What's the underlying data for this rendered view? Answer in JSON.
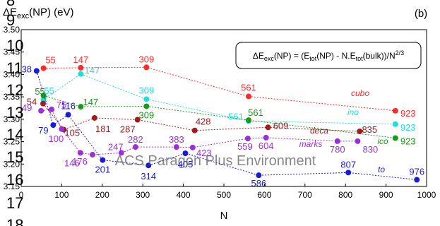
{
  "panel_label": "(b)",
  "watermark": "ACS Paragon Plus Environment",
  "line_numbers": [
    "8",
    "9",
    "10",
    "11",
    "12",
    "13",
    "14",
    "15",
    "16",
    "17",
    "18"
  ],
  "formula": {
    "main": "ΔE",
    "sub": "exc",
    "mid": "(NP) = (E",
    "sub2": "tot",
    "mid2": "(NP) - N.E",
    "sub3": "tot",
    "mid3": "(bulk))/N",
    "sup": "2/3"
  },
  "chart_data": {
    "type": "scatter",
    "xlabel": "N",
    "ylabel": {
      "main": "ΔE",
      "sub": "exc",
      "rest": "(NP) (eV)"
    },
    "xlim": [
      0,
      1000
    ],
    "ylim": [
      3.15,
      3.5
    ],
    "xticks": [
      "0",
      "100",
      "200",
      "300",
      "400",
      "500",
      "600",
      "700",
      "800",
      "900",
      "1000"
    ],
    "yticks": [
      "3.15",
      "3.20",
      "3.25",
      "3.30",
      "3.35",
      "3.40",
      "3.45",
      "3.50"
    ],
    "grid": false,
    "series": [
      {
        "name": "cubo",
        "color": "#ff2a2a",
        "points": [
          {
            "x": 55,
            "y": 3.414,
            "label": "55"
          },
          {
            "x": 147,
            "y": 3.415,
            "label": "147"
          },
          {
            "x": 309,
            "y": 3.416,
            "label": "309"
          },
          {
            "x": 561,
            "y": 3.351,
            "label": "561"
          },
          {
            "x": 923,
            "y": 3.319,
            "label": "923"
          }
        ]
      },
      {
        "name": "ino",
        "color": "#22dddd",
        "points": [
          {
            "x": 55,
            "y": 3.344,
            "label": "55"
          },
          {
            "x": 147,
            "y": 3.401,
            "label": "147"
          },
          {
            "x": 309,
            "y": 3.345,
            "label": "309"
          },
          {
            "x": 561,
            "y": 3.296,
            "label": "561"
          },
          {
            "x": 923,
            "y": 3.289,
            "label": "923"
          }
        ]
      },
      {
        "name": "ico",
        "color": "#1a991a",
        "points": [
          {
            "x": 55,
            "y": 3.353,
            "label": "55"
          },
          {
            "x": 147,
            "y": 3.328,
            "label": "147"
          },
          {
            "x": 309,
            "y": 3.329,
            "label": "309"
          },
          {
            "x": 561,
            "y": 3.298,
            "label": "561"
          },
          {
            "x": 923,
            "y": 3.258,
            "label": "923"
          }
        ]
      },
      {
        "name": "deca",
        "color": "#a01c1c",
        "points": [
          {
            "x": 54,
            "y": 3.335,
            "label": "54"
          },
          {
            "x": 105,
            "y": 3.277,
            "label": "105"
          },
          {
            "x": 181,
            "y": 3.303,
            "label": "181"
          },
          {
            "x": 287,
            "y": 3.299,
            "label": "287"
          },
          {
            "x": 428,
            "y": 3.275,
            "label": "428"
          },
          {
            "x": 609,
            "y": 3.282,
            "label": "609"
          },
          {
            "x": 835,
            "y": 3.273,
            "label": "835"
          }
        ]
      },
      {
        "name": "marks",
        "color": "#9b30d9",
        "points": [
          {
            "x": 49,
            "y": 3.319,
            "label": "49"
          },
          {
            "x": 75,
            "y": 3.322,
            "label": "75"
          },
          {
            "x": 100,
            "y": 3.278,
            "label": "100"
          },
          {
            "x": 146,
            "y": 3.225,
            "label": "146"
          },
          {
            "x": 176,
            "y": 3.221,
            "label": "176"
          },
          {
            "x": 247,
            "y": 3.225,
            "label": "247"
          },
          {
            "x": 282,
            "y": 3.238,
            "label": "282"
          },
          {
            "x": 383,
            "y": 3.238,
            "label": "383"
          },
          {
            "x": 423,
            "y": 3.237,
            "label": "423"
          },
          {
            "x": 559,
            "y": 3.257,
            "label": "559"
          },
          {
            "x": 604,
            "y": 3.259,
            "label": "604"
          },
          {
            "x": 780,
            "y": 3.251,
            "label": "780"
          },
          {
            "x": 830,
            "y": 3.251,
            "label": "830"
          }
        ]
      },
      {
        "name": "to",
        "color": "#1a1adb",
        "points": [
          {
            "x": 38,
            "y": 3.408,
            "label": "38"
          },
          {
            "x": 79,
            "y": 3.287,
            "label": "79"
          },
          {
            "x": 116,
            "y": 3.31,
            "label": "116"
          },
          {
            "x": 201,
            "y": 3.209,
            "label": "201"
          },
          {
            "x": 314,
            "y": 3.197,
            "label": "314"
          },
          {
            "x": 405,
            "y": 3.224,
            "label": "405"
          },
          {
            "x": 586,
            "y": 3.175,
            "label": "586"
          },
          {
            "x": 807,
            "y": 3.181,
            "label": "807"
          },
          {
            "x": 976,
            "y": 3.165,
            "label": "976"
          }
        ]
      }
    ]
  }
}
